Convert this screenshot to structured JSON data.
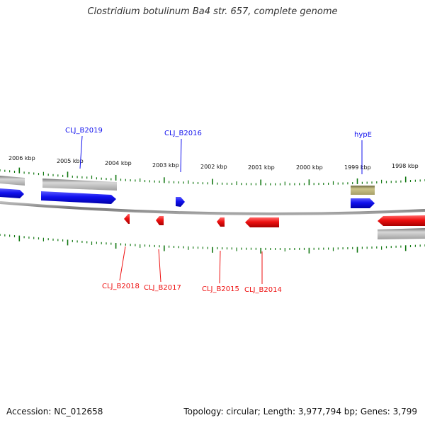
{
  "title": "Clostridium botulinum Ba4 str. 657, complete genome",
  "footer": {
    "accession": "Accession: NC_012658",
    "summary": "Topology: circular; Length: 3,977,794 bp; Genes: 3,799"
  },
  "scale_labels": [
    "2006 kbp",
    "2005 kbp",
    "2004 kbp",
    "2003 kbp",
    "2002 kbp",
    "2001 kbp",
    "2000 kbp",
    "1999 kbp",
    "1998 kbp"
  ],
  "gene_labels_forward": [
    "CLJ_B2019",
    "CLJ_B2016",
    "hypE"
  ],
  "gene_labels_reverse": [
    "CLJ_B2018",
    "CLJ_B2017",
    "CLJ_B2015",
    "CLJ_B2014"
  ],
  "colors": {
    "forward": "#1010ee",
    "reverse": "#ee1010",
    "tick": "#117711",
    "backbone": "#888888",
    "gray_feature": "#aaaaaa",
    "rna_feature": "#b8b070"
  }
}
